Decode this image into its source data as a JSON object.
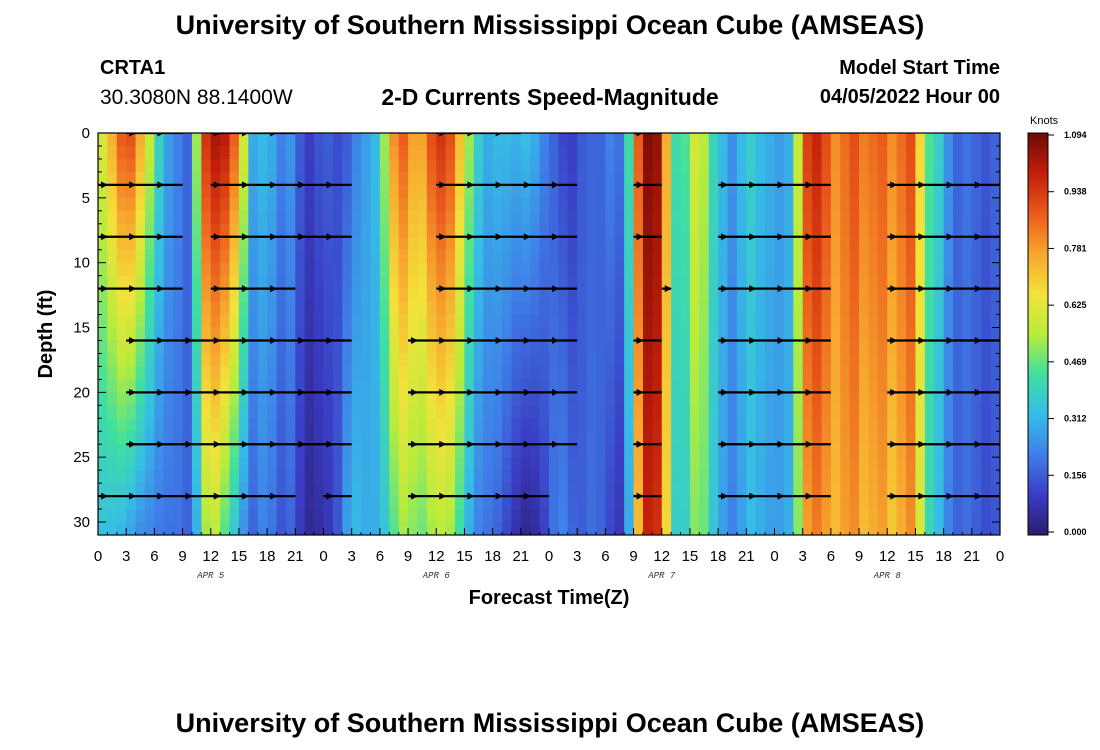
{
  "header": {
    "title": "University of Southern Mississippi Ocean Cube (AMSEAS)",
    "station_id": "CRTA1",
    "station_coords": "30.3080N  88.1400W",
    "subtitle": "2-D Currents Speed-Magnitude",
    "model_label": "Model Start Time",
    "model_time": "04/05/2022 Hour 00"
  },
  "footer": {
    "title": "University of Southern Mississippi Ocean Cube (AMSEAS)"
  },
  "chart_data": {
    "type": "heatmap",
    "title": "2-D Currents Speed-Magnitude",
    "xlabel": "Forecast Time(Z)",
    "ylabel": "Depth (ft)",
    "x_hours_range": [
      0,
      96
    ],
    "ylim": [
      0,
      31
    ],
    "x_tick_labels": [
      "0",
      "3",
      "6",
      "9",
      "12",
      "15",
      "18",
      "21",
      "0",
      "3",
      "6",
      "9",
      "12",
      "15",
      "18",
      "21",
      "0",
      "3",
      "6",
      "9",
      "12",
      "15",
      "18",
      "21",
      "0",
      "3",
      "6",
      "9",
      "12",
      "15",
      "18",
      "21",
      "0"
    ],
    "y_ticks": [
      0,
      5,
      10,
      15,
      20,
      25,
      30
    ],
    "day_labels": [
      {
        "label": "APR 5",
        "hour": 12
      },
      {
        "label": "APR 6",
        "hour": 36
      },
      {
        "label": "APR 7",
        "hour": 60
      },
      {
        "label": "APR 8",
        "hour": 84
      }
    ],
    "colorbar": {
      "unit": "Knots",
      "min": 0.0,
      "max": 1.094,
      "tick_labels": [
        "1.094",
        "0.938",
        "0.781",
        "0.625",
        "0.469",
        "0.312",
        "0.156",
        "0.000"
      ],
      "colors": [
        "#2b1c6e",
        "#3a3dc4",
        "#3f7fe8",
        "#36bde6",
        "#3fe0a0",
        "#b8ec3c",
        "#f2e23a",
        "#f7a62e",
        "#ea5a1c",
        "#c21e0a",
        "#6e0a06"
      ]
    },
    "speed_profile_hours": [
      0,
      3,
      4,
      7,
      9,
      10,
      11,
      12,
      13,
      14,
      15,
      16,
      17,
      18,
      19,
      20,
      21,
      22,
      23,
      24,
      25,
      26,
      27,
      28,
      30,
      31,
      32,
      33,
      34,
      35,
      36,
      37,
      38,
      39,
      40,
      41,
      42,
      43,
      44,
      45,
      46,
      47,
      48,
      49,
      50,
      51,
      52,
      53,
      54,
      55,
      56,
      57,
      58,
      59,
      60,
      61,
      62,
      63,
      64,
      65,
      66,
      67,
      68,
      69,
      70,
      71,
      72,
      73,
      74,
      75,
      76,
      77,
      78,
      79,
      80,
      81,
      82,
      83,
      84,
      85,
      86,
      87,
      88,
      89,
      90,
      91,
      92,
      93,
      94,
      95,
      96
    ],
    "speed_profile_surface": [
      0.55,
      0.95,
      0.85,
      0.3,
      0.2,
      0.15,
      0.9,
      1.0,
      1.05,
      0.95,
      0.8,
      0.4,
      0.2,
      0.45,
      0.15,
      0.3,
      0.22,
      0.1,
      0.12,
      0.18,
      0.15,
      0.12,
      0.2,
      0.25,
      0.35,
      0.7,
      0.9,
      0.85,
      0.7,
      0.85,
      0.95,
      0.95,
      0.85,
      0.6,
      0.45,
      0.3,
      0.3,
      0.35,
      0.3,
      0.32,
      0.35,
      0.25,
      0.2,
      0.15,
      0.1,
      0.12,
      0.2,
      0.15,
      0.2,
      0.25,
      0.15,
      0.7,
      1.05,
      1.09,
      1.0,
      0.5,
      0.35,
      0.55,
      0.65,
      0.45,
      0.35,
      0.3,
      0.2,
      0.45,
      0.3,
      0.35,
      0.25,
      0.3,
      0.3,
      0.85,
      1.0,
      0.95,
      0.85,
      0.75,
      0.95,
      0.85,
      0.8,
      0.9,
      0.85,
      0.75,
      0.95,
      0.85,
      0.5,
      0.4,
      0.35,
      0.15,
      0.2,
      0.2,
      0.15,
      0.15,
      0.2
    ],
    "speed_profile_deep": [
      0.35,
      0.3,
      0.25,
      0.2,
      0.2,
      0.15,
      0.45,
      0.6,
      0.5,
      0.4,
      0.3,
      0.2,
      0.15,
      0.3,
      0.1,
      0.2,
      0.15,
      0.05,
      0.05,
      0.08,
      0.1,
      0.2,
      0.35,
      0.3,
      0.3,
      0.4,
      0.5,
      0.55,
      0.45,
      0.5,
      0.55,
      0.55,
      0.5,
      0.35,
      0.25,
      0.2,
      0.2,
      0.15,
      0.1,
      0.05,
      0.03,
      0.08,
      0.15,
      0.25,
      0.2,
      0.15,
      0.18,
      0.2,
      0.15,
      0.1,
      0.08,
      0.5,
      0.95,
      1.0,
      0.9,
      0.45,
      0.3,
      0.45,
      0.55,
      0.4,
      0.3,
      0.25,
      0.2,
      0.35,
      0.3,
      0.3,
      0.25,
      0.3,
      0.3,
      0.7,
      0.85,
      0.8,
      0.75,
      0.7,
      0.85,
      0.75,
      0.7,
      0.8,
      0.75,
      0.65,
      0.85,
      0.75,
      0.45,
      0.35,
      0.3,
      0.15,
      0.2,
      0.18,
      0.15,
      0.12,
      0.18
    ],
    "arrow_rows_depth": [
      0,
      4,
      8,
      12,
      16,
      20,
      24,
      28
    ],
    "arrow_segments": [
      {
        "depth": 0,
        "from": 3,
        "to": 9
      },
      {
        "depth": 0,
        "from": 12,
        "to": 21
      },
      {
        "depth": 0,
        "from": 36,
        "to": 45
      },
      {
        "depth": 0,
        "from": 57,
        "to": 60
      },
      {
        "depth": 4,
        "from": 0,
        "to": 9
      },
      {
        "depth": 4,
        "from": 12,
        "to": 27
      },
      {
        "depth": 4,
        "from": 36,
        "to": 51
      },
      {
        "depth": 4,
        "from": 57,
        "to": 60
      },
      {
        "depth": 4,
        "from": 66,
        "to": 78
      },
      {
        "depth": 4,
        "from": 84,
        "to": 96
      },
      {
        "depth": 8,
        "from": 0,
        "to": 9
      },
      {
        "depth": 8,
        "from": 12,
        "to": 27
      },
      {
        "depth": 8,
        "from": 36,
        "to": 51
      },
      {
        "depth": 8,
        "from": 57,
        "to": 60
      },
      {
        "depth": 8,
        "from": 66,
        "to": 78
      },
      {
        "depth": 8,
        "from": 84,
        "to": 96
      },
      {
        "depth": 12,
        "from": 0,
        "to": 9
      },
      {
        "depth": 12,
        "from": 12,
        "to": 21
      },
      {
        "depth": 12,
        "from": 36,
        "to": 51
      },
      {
        "depth": 12,
        "from": 60,
        "to": 61
      },
      {
        "depth": 12,
        "from": 66,
        "to": 78
      },
      {
        "depth": 12,
        "from": 84,
        "to": 96
      },
      {
        "depth": 16,
        "from": 3,
        "to": 12
      },
      {
        "depth": 16,
        "from": 12,
        "to": 27
      },
      {
        "depth": 16,
        "from": 33,
        "to": 51
      },
      {
        "depth": 16,
        "from": 57,
        "to": 60
      },
      {
        "depth": 16,
        "from": 66,
        "to": 78
      },
      {
        "depth": 16,
        "from": 84,
        "to": 96
      },
      {
        "depth": 20,
        "from": 3,
        "to": 27
      },
      {
        "depth": 20,
        "from": 33,
        "to": 51
      },
      {
        "depth": 20,
        "from": 57,
        "to": 60
      },
      {
        "depth": 20,
        "from": 66,
        "to": 78
      },
      {
        "depth": 20,
        "from": 84,
        "to": 96
      },
      {
        "depth": 24,
        "from": 3,
        "to": 27
      },
      {
        "depth": 24,
        "from": 33,
        "to": 51
      },
      {
        "depth": 24,
        "from": 57,
        "to": 60
      },
      {
        "depth": 24,
        "from": 66,
        "to": 78
      },
      {
        "depth": 24,
        "from": 84,
        "to": 96
      },
      {
        "depth": 28,
        "from": 0,
        "to": 21
      },
      {
        "depth": 28,
        "from": 24,
        "to": 27
      },
      {
        "depth": 28,
        "from": 33,
        "to": 48
      },
      {
        "depth": 28,
        "from": 57,
        "to": 60
      },
      {
        "depth": 28,
        "from": 66,
        "to": 78
      },
      {
        "depth": 28,
        "from": 84,
        "to": 96
      }
    ]
  }
}
